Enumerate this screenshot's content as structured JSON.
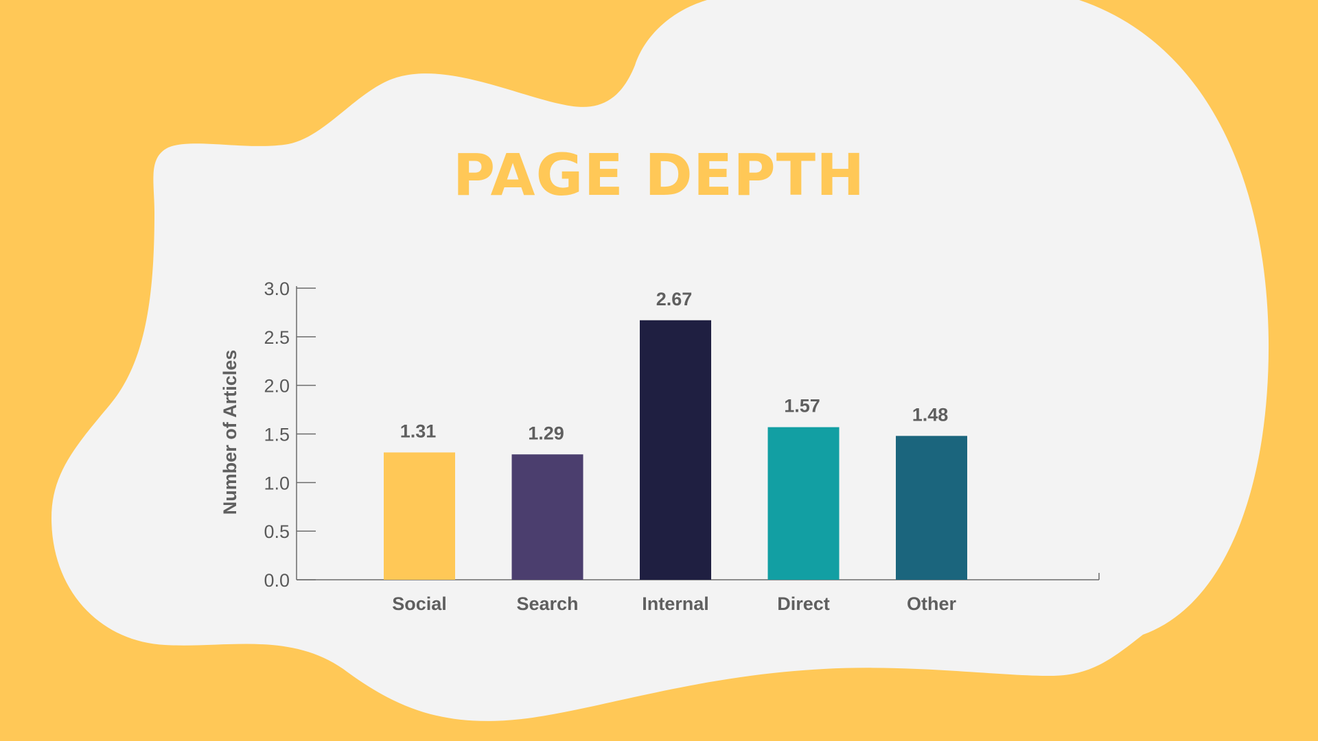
{
  "colors": {
    "background": "#FFC857",
    "panel": "#F3F3F3",
    "title": "#FFC857",
    "text": "#5F5F5F",
    "axis": "#6B6B6B"
  },
  "chart_data": {
    "type": "bar",
    "title": "PAGE DEPTH",
    "xlabel": "",
    "ylabel": "Number of Articles",
    "categories": [
      "Social",
      "Search",
      "Internal",
      "Direct",
      "Other"
    ],
    "values": [
      1.31,
      1.29,
      2.67,
      1.57,
      1.48
    ],
    "value_labels": [
      "1.31",
      "1.29",
      "2.67",
      "1.57",
      "1.48"
    ],
    "bar_colors": [
      "#FFC857",
      "#4B3E6E",
      "#1F1F41",
      "#129FA3",
      "#1B657D"
    ],
    "ylim": [
      0,
      3.0
    ],
    "yticks": [
      "0.0",
      "0.5",
      "1.0",
      "1.5",
      "2.0",
      "2.5",
      "3.0"
    ],
    "grid": false,
    "legend": "none"
  }
}
